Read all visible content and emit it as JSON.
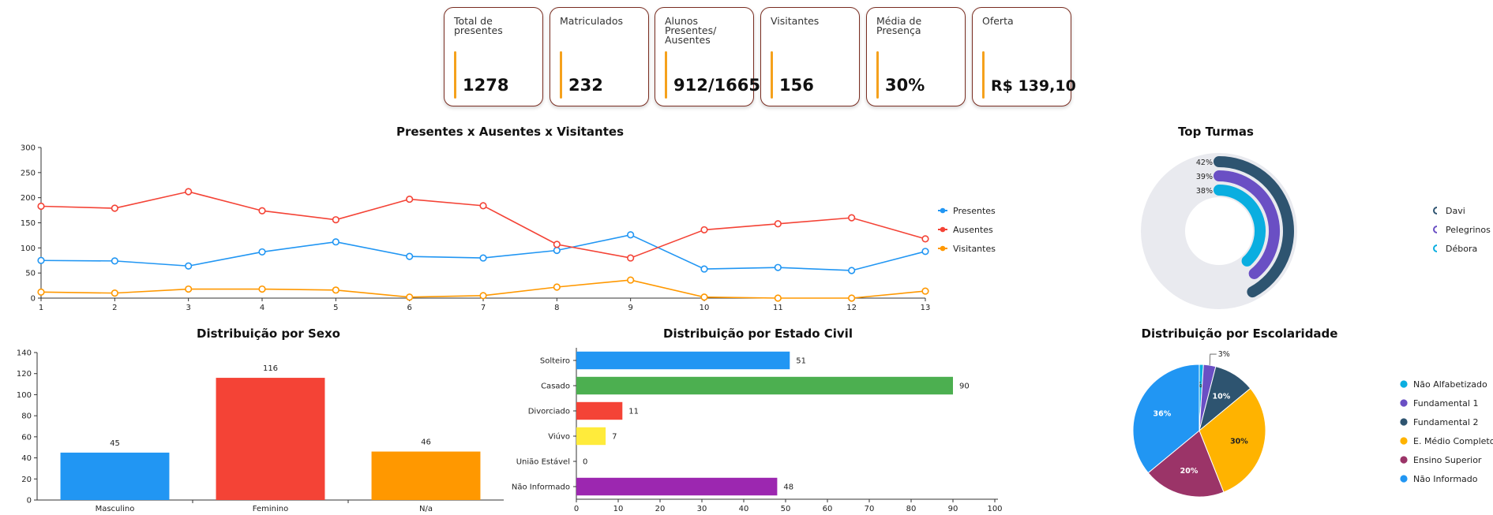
{
  "kpis": [
    {
      "label": "Total de presentes",
      "value": "1278"
    },
    {
      "label": "Matriculados",
      "value": "232"
    },
    {
      "label": "Alunos Presentes/ Ausentes",
      "value": "912/1665"
    },
    {
      "label": "Visitantes",
      "value": "156"
    },
    {
      "label": "Média de Presença",
      "value": "30%"
    },
    {
      "label": "Oferta",
      "value": "R$ 139,10"
    }
  ],
  "chart_data": [
    {
      "type": "line",
      "title": "Presentes x Ausentes x Visitantes",
      "x": [
        "1",
        "2",
        "3",
        "4",
        "5",
        "6",
        "7",
        "8",
        "9",
        "10",
        "11",
        "12",
        "13"
      ],
      "ylim": [
        0,
        300
      ],
      "yticks": [
        "0",
        "50",
        "100",
        "150",
        "200",
        "250",
        "300"
      ],
      "legend": "right",
      "series": [
        {
          "name": "Presentes",
          "color": "#2196f3",
          "values": [
            75,
            74,
            64,
            92,
            112,
            83,
            80,
            95,
            126,
            58,
            61,
            55,
            93
          ]
        },
        {
          "name": "Ausentes",
          "color": "#f44336",
          "values": [
            183,
            179,
            212,
            174,
            156,
            197,
            184,
            107,
            80,
            136,
            148,
            160,
            118
          ]
        },
        {
          "name": "Visitantes",
          "color": "#ff9800",
          "values": [
            12,
            10,
            18,
            18,
            16,
            2,
            5,
            22,
            36,
            2,
            0,
            0,
            14
          ]
        }
      ]
    },
    {
      "type": "radial-bar",
      "title": "Top Turmas",
      "legend": "right",
      "series": [
        {
          "name": "Davi",
          "label": "42%",
          "value": 42,
          "color": "#2e5470"
        },
        {
          "name": "Pelegrinos",
          "label": "39%",
          "value": 39,
          "color": "#6a4fc4"
        },
        {
          "name": "Débora",
          "label": "38%",
          "value": 38,
          "color": "#0aaee0"
        }
      ]
    },
    {
      "type": "bar",
      "title": "Distribuição por Sexo",
      "categories": [
        "Masculino",
        "Feminino",
        "N/a"
      ],
      "values": [
        45,
        116,
        46
      ],
      "value_labels": [
        "45",
        "116",
        "46"
      ],
      "colors": [
        "#2196f3",
        "#f44336",
        "#ff9800"
      ],
      "ylim": [
        0,
        140
      ],
      "yticks": [
        "0",
        "20",
        "40",
        "60",
        "80",
        "100",
        "120",
        "140"
      ]
    },
    {
      "type": "bar",
      "orientation": "horizontal",
      "title": "Distribuição por Estado Civil",
      "categories": [
        "Solteiro",
        "Casado",
        "Divorciado",
        "Viúvo",
        "União Estável",
        "Não Informado"
      ],
      "values": [
        51,
        90,
        11,
        7,
        0,
        48
      ],
      "value_labels": [
        "51",
        "90",
        "11",
        "7",
        "0",
        "48"
      ],
      "colors": [
        "#2196f3",
        "#4caf50",
        "#f44336",
        "#ffeb3b",
        "#9e9e9e",
        "#9c27b0"
      ],
      "xlim": [
        0,
        100
      ],
      "xticks": [
        "0",
        "10",
        "20",
        "30",
        "40",
        "50",
        "60",
        "70",
        "80",
        "90",
        "100"
      ]
    },
    {
      "type": "pie",
      "title": "Distribuição por Escolaridade",
      "legend": "right",
      "slices": [
        {
          "name": "Não Alfabetizado",
          "value": 1,
          "label": "1%",
          "color": "#0aaee0"
        },
        {
          "name": "Fundamental 1",
          "value": 3,
          "label": "3%",
          "color": "#6a4fc4"
        },
        {
          "name": "Fundamental 2",
          "value": 10,
          "label": "10%",
          "color": "#2e5470"
        },
        {
          "name": "E. Médio Completo",
          "value": 30,
          "label": "30%",
          "color": "#ffb300"
        },
        {
          "name": "Ensino Superior",
          "value": 20,
          "label": "20%",
          "color": "#9b3468"
        },
        {
          "name": "Não Informado",
          "value": 36,
          "label": "36%",
          "color": "#2196f3"
        }
      ]
    }
  ]
}
